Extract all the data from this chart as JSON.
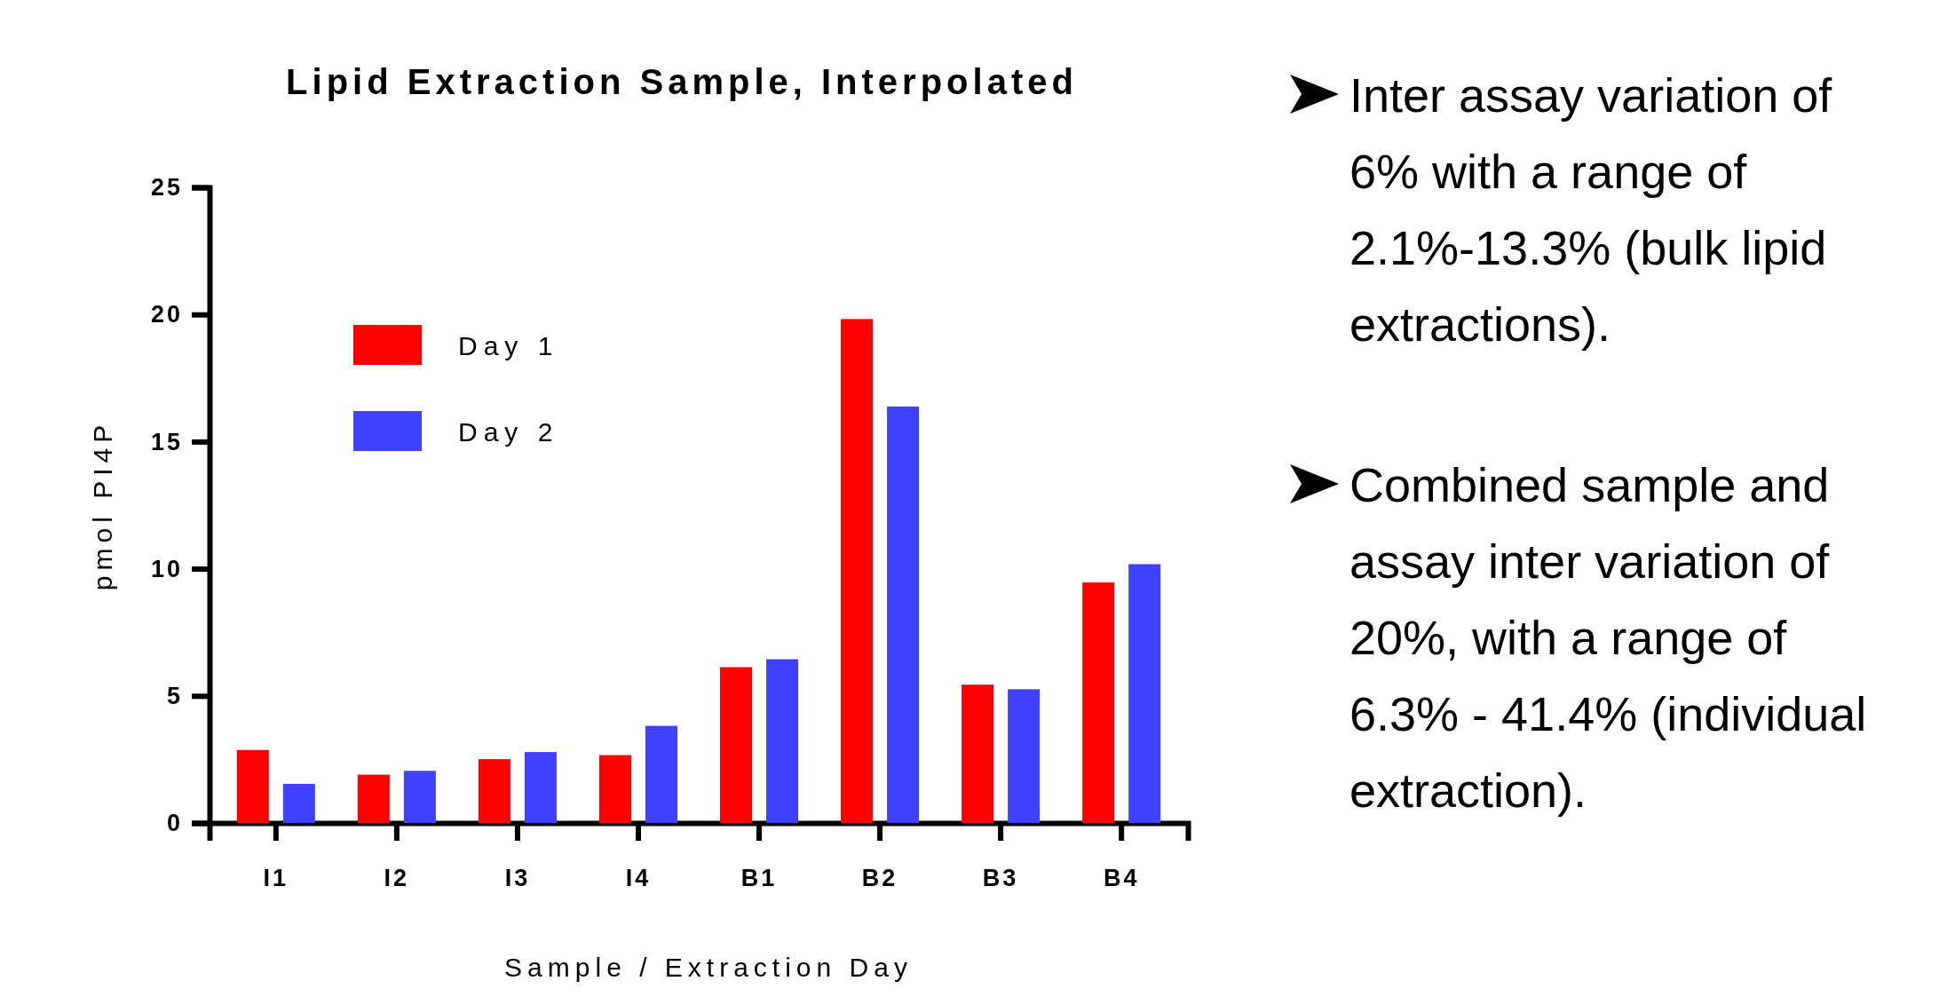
{
  "chart_data": {
    "type": "bar",
    "title": "Lipid Extraction Sample, Interpolated",
    "xlabel": "Sample / Extraction Day",
    "ylabel": "pmol PI4P",
    "categories": [
      "I1",
      "I2",
      "I3",
      "I4",
      "B1",
      "B2",
      "B3",
      "B4"
    ],
    "series": [
      {
        "name": "Day 1",
        "color": "#ff0000",
        "values": [
          2.87,
          1.9,
          2.51,
          2.67,
          6.13,
          19.82,
          5.44,
          9.46
        ]
      },
      {
        "name": "Day 2",
        "color": "#4040ff",
        "values": [
          1.54,
          2.05,
          2.79,
          3.82,
          6.44,
          16.38,
          5.26,
          10.18
        ]
      }
    ],
    "ylim": [
      0,
      25
    ],
    "yticks": [
      0,
      5,
      10,
      15,
      20,
      25
    ],
    "grid": false,
    "legend": "top left",
    "annotations": [
      "Inter assay variation of 6% with a range of 2.1%-13.3% (bulk lipid extractions).",
      "Combined sample and assay inter variation of 20%, with a range of 6.3% - 41.4% (individual extraction)."
    ]
  }
}
